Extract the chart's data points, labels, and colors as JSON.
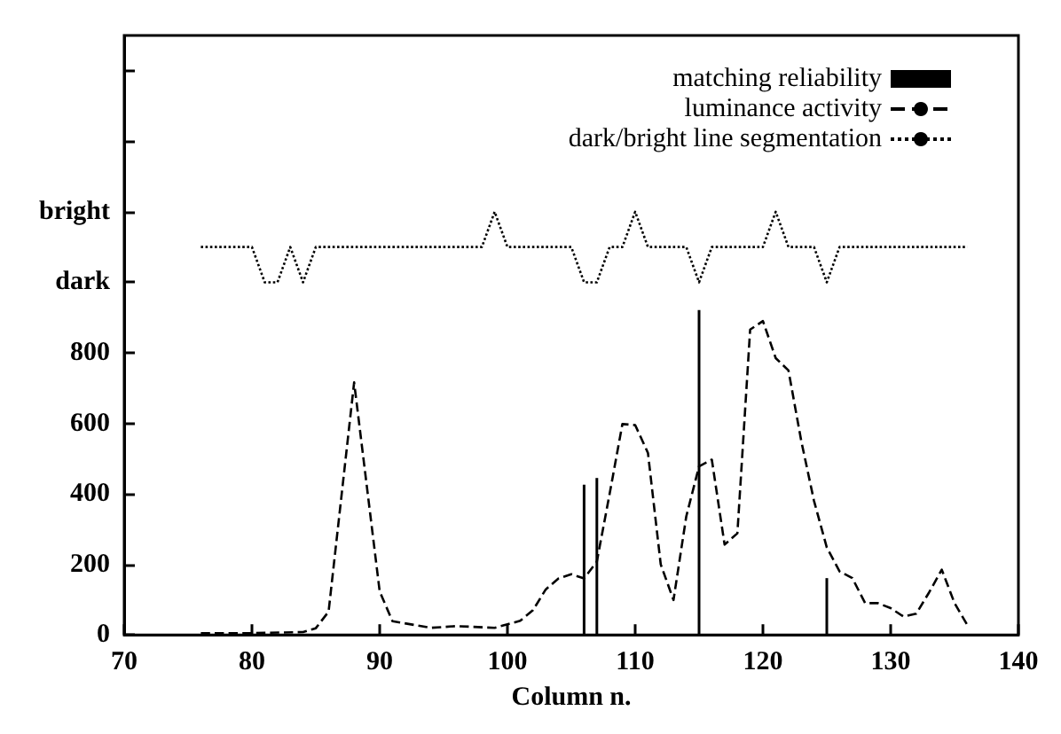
{
  "chart_data": {
    "type": "line",
    "xlabel": "Column n.",
    "xlim": [
      70,
      140
    ],
    "xticks": [
      70,
      80,
      90,
      100,
      110,
      120,
      130,
      140
    ],
    "ylim": [
      0,
      1700
    ],
    "yticks": [
      0,
      200,
      400,
      600,
      800,
      {
        "value": 1000,
        "label": "dark"
      },
      {
        "value": 1200,
        "label": "bright"
      },
      {
        "value": 1400,
        "label": null
      },
      {
        "value": 1600,
        "label": null
      }
    ],
    "grid": false,
    "legend": "top right",
    "marker": "none",
    "series": [
      {
        "name": "matching reliability",
        "type": "bar",
        "color": "#000000",
        "line_style": "solid",
        "x": [
          106,
          107,
          115,
          125
        ],
        "values": [
          426,
          445,
          921,
          161
        ]
      },
      {
        "name": "luminance activity",
        "color": "#000000",
        "line_style": "dashed",
        "x": [
          76,
          80,
          84,
          85,
          86,
          88,
          90,
          91,
          94,
          96,
          99,
          100,
          101,
          102,
          103,
          104,
          105,
          106,
          107,
          108,
          109,
          110,
          111,
          112,
          113,
          114,
          115,
          116,
          117,
          118,
          119,
          120,
          121,
          122,
          123,
          124,
          125,
          126,
          127,
          128,
          129,
          130,
          131,
          132,
          133,
          134,
          135,
          136
        ],
        "values": [
          5,
          5,
          8,
          19,
          66,
          716,
          123,
          39,
          20,
          25,
          20,
          30,
          40,
          70,
          129,
          160,
          172,
          160,
          208,
          400,
          598,
          595,
          516,
          200,
          99,
          336,
          478,
          497,
          256,
          288,
          866,
          890,
          785,
          750,
          550,
          380,
          248,
          180,
          161,
          90,
          90,
          76,
          52,
          60,
          120,
          185,
          90,
          28
        ]
      },
      {
        "name": "dark/bright line segmentation",
        "color": "#000000",
        "line_style": "dotted",
        "x": [
          76,
          80,
          81,
          82,
          83,
          84,
          85,
          98,
          99,
          100,
          105,
          106,
          107,
          108,
          109,
          110,
          111,
          114,
          115,
          116,
          120,
          121,
          122,
          124,
          125,
          126,
          136
        ],
        "values": [
          1100,
          1100,
          1000,
          1000,
          1100,
          1000,
          1100,
          1100,
          1200,
          1100,
          1100,
          1000,
          1000,
          1100,
          1100,
          1200,
          1100,
          1100,
          1000,
          1100,
          1100,
          1200,
          1100,
          1100,
          1000,
          1100,
          1100
        ]
      }
    ]
  }
}
